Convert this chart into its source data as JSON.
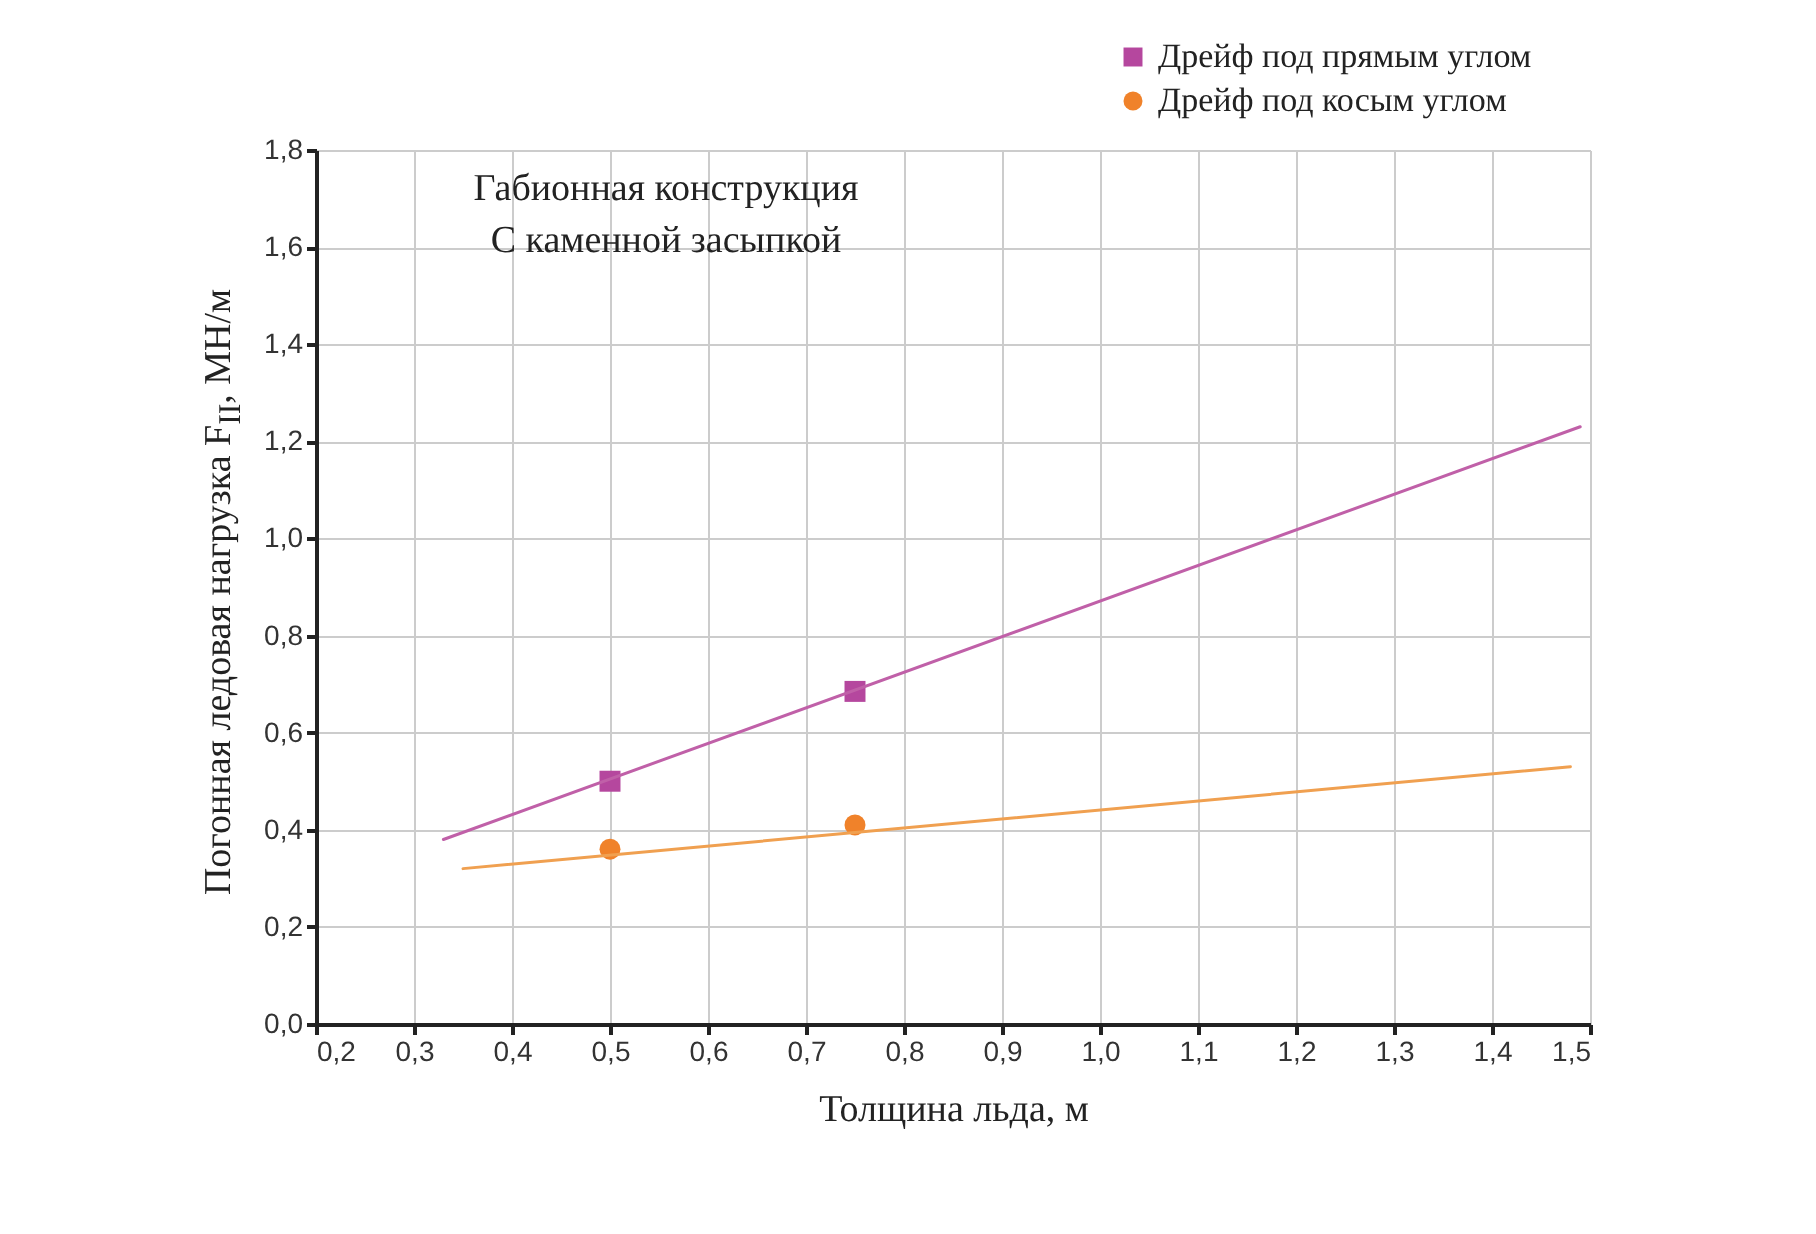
{
  "chart_data": {
    "type": "scatter",
    "xlabel": "Толщина льда, м",
    "ylabel": "Погонная ледовая нагрузка F$_{II}$, МН/м",
    "annotations": [
      "Габионная конструкция",
      "С каменной засыпкой"
    ],
    "series": [
      {
        "name": "Дрейф под прямым углом",
        "marker": "square",
        "color": "#b5479e",
        "x": [
          0.5,
          0.75
        ],
        "values": [
          0.5,
          0.685
        ]
      },
      {
        "name": "Дрейф под косым углом",
        "marker": "circle",
        "color": "#f0822a",
        "x": [
          0.5,
          0.75
        ],
        "values": [
          0.36,
          0.41
        ]
      },
      {
        "type": "line",
        "color": "#c060a8",
        "x": [
          0.33,
          1.49
        ],
        "values": [
          0.38,
          1.23
        ]
      },
      {
        "type": "line",
        "color": "#f0a050",
        "x": [
          0.35,
          1.48
        ],
        "values": [
          0.32,
          0.53
        ]
      }
    ],
    "xlim": [
      0.2,
      1.5
    ],
    "xticks": [
      {
        "value": 0.2,
        "label": "0,2"
      },
      {
        "value": 0.3,
        "label": "0,3"
      },
      {
        "value": 0.4,
        "label": "0,4"
      },
      {
        "value": 0.5,
        "label": "0,5"
      },
      {
        "value": 0.6,
        "label": "0,6"
      },
      {
        "value": 0.7,
        "label": "0,7"
      },
      {
        "value": 0.8,
        "label": "0,8"
      },
      {
        "value": 0.9,
        "label": "0,9"
      },
      {
        "value": 1.0,
        "label": "1,0"
      },
      {
        "value": 1.1,
        "label": "1,1"
      },
      {
        "value": 1.2,
        "label": "1,2"
      },
      {
        "value": 1.3,
        "label": "1,3"
      },
      {
        "value": 1.4,
        "label": "1,4"
      },
      {
        "value": 1.5,
        "label": "1,5"
      }
    ],
    "ylim": [
      0,
      1.8
    ],
    "yticks": [
      {
        "value": 0,
        "label": "0,0"
      },
      {
        "value": 0.2,
        "label": "0,2"
      },
      {
        "value": 0.4,
        "label": "0,4"
      },
      {
        "value": 0.6,
        "label": "0,6"
      },
      {
        "value": 0.8,
        "label": "0,8"
      },
      {
        "value": 1.0,
        "label": "1,0"
      },
      {
        "value": 1.2,
        "label": "1,2"
      },
      {
        "value": 1.4,
        "label": "1,4"
      },
      {
        "value": 1.6,
        "label": "1,6"
      },
      {
        "value": 1.8,
        "label": "1,8"
      }
    ],
    "grid": true,
    "legend": "top right"
  }
}
